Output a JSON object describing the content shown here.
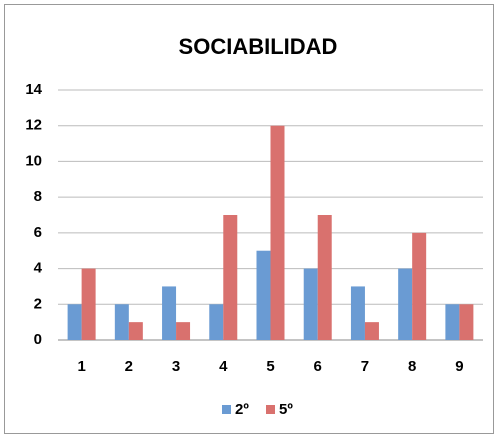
{
  "chart_data": {
    "type": "bar",
    "title": "SOCIABILIDAD",
    "categories": [
      "1",
      "2",
      "3",
      "4",
      "5",
      "6",
      "7",
      "8",
      "9"
    ],
    "series": [
      {
        "name": "2º",
        "color": "#6a9bd3",
        "values": [
          2,
          2,
          3,
          2,
          5,
          4,
          3,
          4,
          2
        ]
      },
      {
        "name": "5º",
        "color": "#d9716e",
        "values": [
          4,
          1,
          1,
          7,
          12,
          7,
          1,
          6,
          2
        ]
      }
    ],
    "ylim": [
      0,
      14
    ],
    "yticks": [
      0,
      2,
      4,
      6,
      8,
      10,
      12,
      14
    ],
    "grid": true,
    "legend": "bottom"
  }
}
